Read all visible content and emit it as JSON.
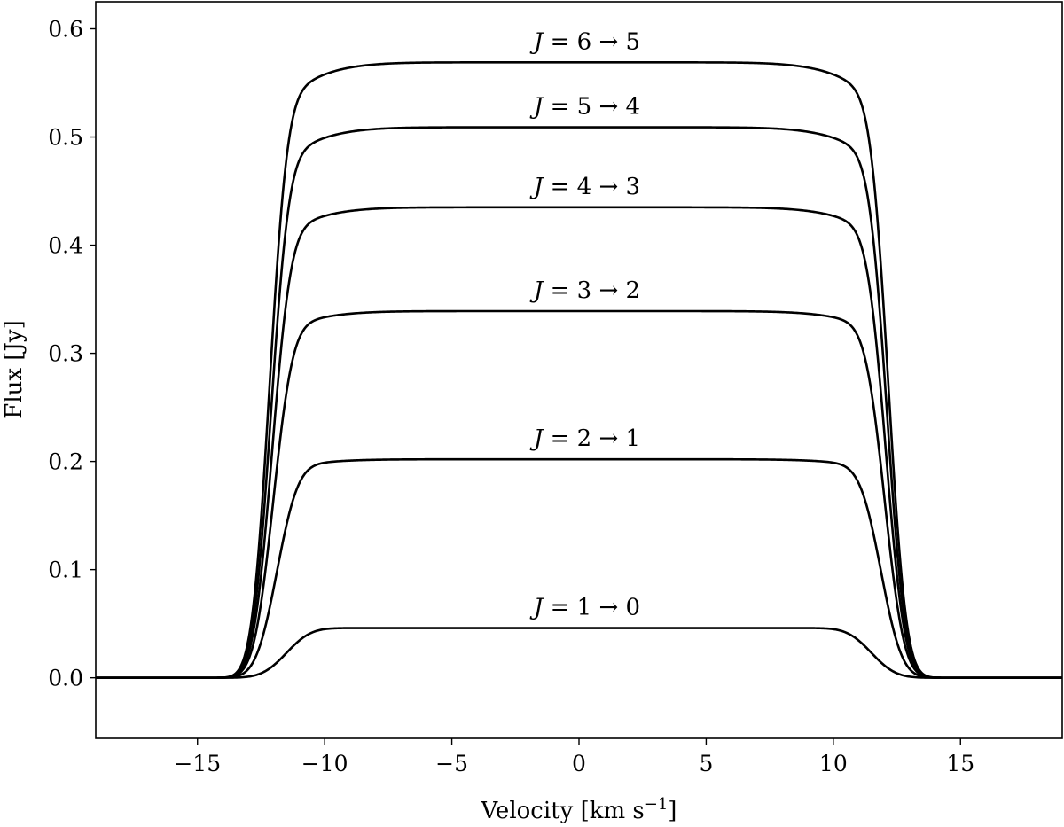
{
  "chart_data": {
    "type": "line",
    "title": "",
    "xlabel": "Velocity [km s",
    "xlabel_sup": "−1",
    "xlabel_end": "]",
    "ylabel": "Flux [Jy]",
    "xlim": [
      -19,
      19
    ],
    "ylim": [
      -0.056,
      0.625
    ],
    "xticks": [
      -15,
      -10,
      -5,
      0,
      5,
      10,
      15
    ],
    "xtick_labels": [
      "−15",
      "−10",
      "−5",
      "0",
      "5",
      "10",
      "15"
    ],
    "yticks": [
      0.0,
      0.1,
      0.2,
      0.3,
      0.4,
      0.5,
      0.6
    ],
    "ytick_labels": [
      "0.0",
      "0.1",
      "0.2",
      "0.3",
      "0.4",
      "0.5",
      "0.6"
    ],
    "grid": false,
    "legend": "none",
    "color": "#000000",
    "series": [
      {
        "name": "J = 1 → 0",
        "label_var": "J",
        "label_rest": " = 1 → 0",
        "peak": 0.046,
        "edge": 0.046,
        "halfwidth": 11.5,
        "sigma": 0.75
      },
      {
        "name": "J = 2 → 1",
        "label_var": "J",
        "label_rest": " = 2 → 1",
        "peak": 0.202,
        "edge": 0.196,
        "halfwidth": 11.9,
        "sigma": 0.65
      },
      {
        "name": "J = 3 → 2",
        "label_var": "J",
        "label_rest": " = 3 → 2",
        "peak": 0.339,
        "edge": 0.327,
        "halfwidth": 12.05,
        "sigma": 0.6
      },
      {
        "name": "J = 4 → 3",
        "label_var": "J",
        "label_rest": " = 4 → 3",
        "peak": 0.435,
        "edge": 0.418,
        "halfwidth": 12.1,
        "sigma": 0.58
      },
      {
        "name": "J = 5 → 4",
        "label_var": "J",
        "label_rest": " = 5 → 4",
        "peak": 0.509,
        "edge": 0.488,
        "halfwidth": 12.15,
        "sigma": 0.56
      },
      {
        "name": "J = 6 → 5",
        "label_var": "J",
        "label_rest": " = 6 → 5",
        "peak": 0.569,
        "edge": 0.545,
        "halfwidth": 12.2,
        "sigma": 0.55
      }
    ]
  }
}
